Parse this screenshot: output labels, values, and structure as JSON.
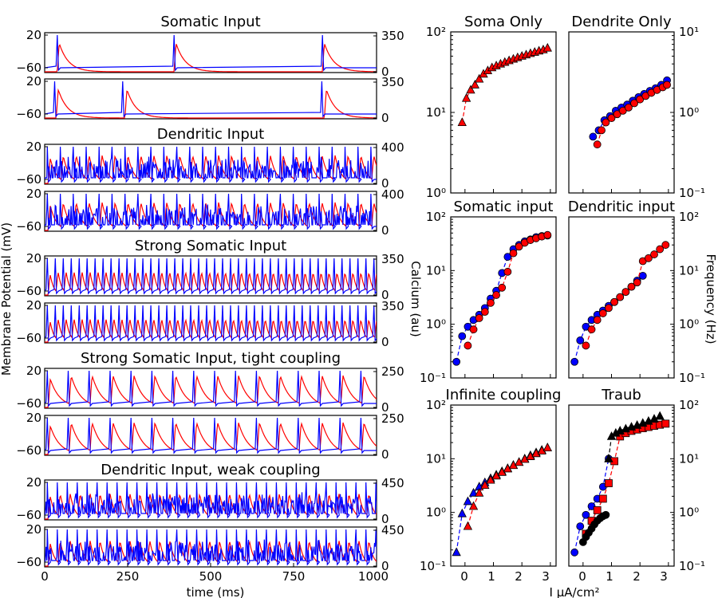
{
  "chart_data": [
    {
      "type": "line",
      "panel": "trace",
      "title": "Somatic Input",
      "xlim": [
        0,
        1000
      ],
      "left_ticks": [
        "20",
        "−60"
      ],
      "right_ticks": [
        "350",
        "0"
      ],
      "traces": [
        {
          "color": "#0000ff",
          "spike_times": [
            38,
            390,
            837
          ],
          "burst": true,
          "noise": false
        },
        {
          "color": "#ff0000",
          "spike_times": [
            38,
            390,
            837
          ],
          "kind": "calcium"
        }
      ],
      "traces2": [
        {
          "color": "#0000ff",
          "spike_times": [
            30,
            235,
            835
          ],
          "noise": false
        },
        {
          "color": "#ff0000",
          "spike_times": [
            35,
            242,
            843
          ],
          "kind": "calcium"
        }
      ]
    },
    {
      "type": "line",
      "panel": "trace",
      "title": "Dendritic Input",
      "xlim": [
        0,
        1000
      ],
      "left_ticks": [
        "20",
        "−60"
      ],
      "right_ticks": [
        "400",
        "0"
      ],
      "period": 39,
      "noise": true
    },
    {
      "type": "line",
      "panel": "trace",
      "title": "Strong Somatic Input",
      "xlim": [
        0,
        1000
      ],
      "left_ticks": [
        "20",
        "−60"
      ],
      "right_ticks": [
        "350",
        "0"
      ],
      "period": 24,
      "noise": false
    },
    {
      "type": "line",
      "panel": "trace",
      "title": "Strong Somatic Input, tight coupling",
      "xlim": [
        0,
        1000
      ],
      "left_ticks": [
        "20",
        "−60"
      ],
      "right_ticks": [
        "250",
        "0"
      ],
      "period": 63,
      "noise": false
    },
    {
      "type": "line",
      "panel": "trace",
      "title": "Dendritic Input, weak coupling",
      "xlim": [
        0,
        1000
      ],
      "left_ticks": [
        "20",
        "−60"
      ],
      "right_ticks": [
        "450",
        "0"
      ],
      "period": 30,
      "noise": true
    },
    {
      "type": "scatter",
      "panel": "fi",
      "title": "Soma Only",
      "yscale": "log",
      "ylim_exp": [
        0,
        2
      ],
      "yticks": [
        "10⁰",
        "10¹",
        "10²"
      ],
      "series": [
        {
          "color": "#ff0000",
          "marker": "triangle",
          "x": [
            -0.1,
            0.05,
            0.2,
            0.35,
            0.5,
            0.65,
            0.8,
            0.95,
            1.1,
            1.25,
            1.4,
            1.55,
            1.7,
            1.85,
            2.0,
            2.15,
            2.3,
            2.45,
            2.6,
            2.75,
            2.9
          ],
          "y": [
            7.5,
            15,
            19,
            22,
            26,
            30,
            33,
            36,
            38,
            40,
            42,
            44,
            46,
            48,
            50,
            52,
            54,
            56,
            58,
            60,
            63
          ]
        }
      ]
    },
    {
      "type": "scatter",
      "panel": "fi",
      "title": "Dendrite Only",
      "yscale": "log",
      "ylim_exp": [
        -1,
        1
      ],
      "yticks": [
        "10⁻¹",
        "10⁰",
        "10¹"
      ],
      "series": [
        {
          "color": "#0000ff",
          "marker": "circle",
          "x": [
            0.35,
            0.55,
            0.75,
            0.95,
            1.15,
            1.35,
            1.55,
            1.75,
            1.95,
            2.15,
            2.35,
            2.55,
            2.75,
            2.95
          ],
          "y": [
            0.5,
            0.6,
            0.8,
            0.9,
            1.05,
            1.15,
            1.25,
            1.4,
            1.55,
            1.7,
            1.85,
            2.0,
            2.2,
            2.5
          ]
        },
        {
          "color": "#ff0000",
          "marker": "circle",
          "x": [
            0.5,
            0.65,
            0.8,
            1.0,
            1.2,
            1.4,
            1.6,
            1.8,
            2.0,
            2.2,
            2.4,
            2.6,
            2.8,
            2.95
          ],
          "y": [
            0.4,
            0.6,
            0.75,
            0.85,
            0.95,
            1.05,
            1.15,
            1.3,
            1.45,
            1.6,
            1.75,
            1.9,
            2.05,
            2.2
          ]
        }
      ]
    },
    {
      "type": "scatter",
      "panel": "fi",
      "title": "Somatic input",
      "yscale": "log",
      "ylim_exp": [
        -1,
        2
      ],
      "yticks": [
        "10⁻¹",
        "10⁰",
        "10¹",
        "10²"
      ],
      "series": [
        {
          "color": "#0000ff",
          "marker": "circle",
          "x": [
            -0.3,
            -0.1,
            0.1,
            0.3,
            0.5,
            0.7,
            0.9,
            1.1,
            1.3,
            1.5,
            1.7,
            1.9,
            2.1,
            2.3,
            2.5,
            2.7,
            2.9
          ],
          "y": [
            0.2,
            0.6,
            0.9,
            1.2,
            1.5,
            2.0,
            3.0,
            4.2,
            9.0,
            18,
            25,
            30,
            35,
            38,
            42,
            44,
            45
          ]
        },
        {
          "color": "#ff0000",
          "marker": "circle",
          "x": [
            0.1,
            0.3,
            0.5,
            0.7,
            0.9,
            1.1,
            1.3,
            1.5,
            1.7,
            1.9,
            2.1,
            2.3,
            2.5,
            2.7,
            2.9
          ],
          "y": [
            0.4,
            0.8,
            1.3,
            1.7,
            2.5,
            3.5,
            4.8,
            9.5,
            21,
            28,
            33,
            37,
            40,
            43,
            46
          ]
        }
      ]
    },
    {
      "type": "scatter",
      "panel": "fi",
      "title": "Dendritic input",
      "yscale": "log",
      "ylim_exp": [
        -1,
        2
      ],
      "yticks": [
        "10⁻¹",
        "10⁰",
        "10¹",
        "10²"
      ],
      "series": [
        {
          "color": "#0000ff",
          "marker": "circle",
          "x": [
            -0.3,
            -0.1,
            0.1,
            0.3,
            0.5,
            0.7,
            0.9,
            1.1,
            1.3,
            1.5,
            1.7,
            1.9,
            2.1
          ],
          "y": [
            0.2,
            0.5,
            0.9,
            1.2,
            1.5,
            1.8,
            2.2,
            2.6,
            3.2,
            4.0,
            5.0,
            6.5,
            8.0
          ]
        },
        {
          "color": "#ff0000",
          "marker": "circle",
          "x": [
            0.1,
            0.3,
            0.5,
            0.7,
            0.9,
            1.1,
            1.3,
            1.5,
            1.7,
            1.9,
            2.1,
            2.3,
            2.5,
            2.7,
            2.9
          ],
          "y": [
            0.4,
            0.8,
            1.2,
            1.6,
            2.0,
            2.6,
            3.2,
            4.0,
            5.0,
            6.0,
            15,
            17,
            20,
            25,
            30
          ]
        }
      ]
    },
    {
      "type": "scatter",
      "panel": "fi",
      "title": "Infinite coupling",
      "yscale": "log",
      "ylim_exp": [
        -1,
        2
      ],
      "yticks": [
        "10⁻¹",
        "10⁰",
        "10¹",
        "10²"
      ],
      "series": [
        {
          "color": "#0000ff",
          "marker": "triangle",
          "x": [
            -0.3,
            -0.1,
            0.1,
            0.3,
            0.5,
            0.7,
            0.9,
            1.1,
            1.3,
            1.5,
            1.7,
            1.9,
            2.1,
            2.3,
            2.5,
            2.7,
            2.9
          ],
          "y": [
            0.18,
            0.95,
            1.6,
            2.3,
            3.0,
            3.6,
            4.3,
            5.0,
            5.8,
            6.6,
            7.6,
            8.6,
            10,
            11.5,
            13,
            14.5,
            16
          ]
        },
        {
          "color": "#ff0000",
          "marker": "triangle",
          "x": [
            0.1,
            0.3,
            0.5,
            0.7,
            0.9,
            1.1,
            1.3,
            1.5,
            1.7,
            1.9,
            2.1,
            2.3,
            2.5,
            2.7,
            2.9
          ],
          "y": [
            0.55,
            1.3,
            2.3,
            3.2,
            4.0,
            4.8,
            5.6,
            6.5,
            7.5,
            8.6,
            9.8,
            11,
            12.5,
            14,
            16
          ]
        }
      ]
    },
    {
      "type": "scatter",
      "panel": "fi",
      "title": "Traub",
      "yscale": "log",
      "ylim_exp": [
        -1,
        2
      ],
      "yticks": [
        "10⁻¹",
        "10⁰",
        "10¹",
        "10²"
      ],
      "series": [
        {
          "color": "#0000ff",
          "marker": "circle",
          "x": [
            -0.3,
            -0.1,
            0.1,
            0.3,
            0.5,
            0.7,
            0.9
          ],
          "y": [
            0.18,
            0.55,
            0.9,
            1.3,
            1.8,
            3.0,
            10
          ]
        },
        {
          "color": "#ff0000",
          "marker": "square",
          "x": [
            0.1,
            0.3,
            0.5,
            0.7,
            0.9,
            1.1,
            1.3,
            1.5,
            1.7,
            1.9,
            2.1,
            2.3,
            2.5,
            2.7,
            2.9
          ],
          "y": [
            0.4,
            0.7,
            1.1,
            1.8,
            3.5,
            9.0,
            26,
            30,
            33,
            35,
            37,
            39,
            41,
            43,
            45
          ]
        },
        {
          "color": "#000000",
          "marker": "circle",
          "x": [
            0.0,
            0.1,
            0.2,
            0.3,
            0.4,
            0.5,
            0.6,
            0.7,
            0.8
          ],
          "y": [
            0.28,
            0.35,
            0.42,
            0.5,
            0.6,
            0.7,
            0.78,
            0.85,
            0.9
          ]
        },
        {
          "color": "#000000",
          "marker": "triangle",
          "x": [
            0.9,
            1.0,
            1.15,
            1.3,
            1.5,
            1.7,
            1.9,
            2.1,
            2.3,
            2.5,
            2.7
          ],
          "y": [
            10,
            26,
            30,
            33,
            36,
            39,
            42,
            46,
            50,
            55,
            62
          ]
        }
      ]
    }
  ],
  "labels": {
    "ylabel_left": "Membrane Potential (mV)",
    "xlabel_left": "time (ms)",
    "ylabel_mid": "Calcium (au)",
    "ylabel_right": "Frequency (Hz)",
    "xlabel_right": "I μA/cm²",
    "xticks_left": [
      "0",
      "250",
      "500",
      "750",
      "1000"
    ],
    "xticks_right": [
      "0",
      "1",
      "2",
      "3"
    ]
  }
}
